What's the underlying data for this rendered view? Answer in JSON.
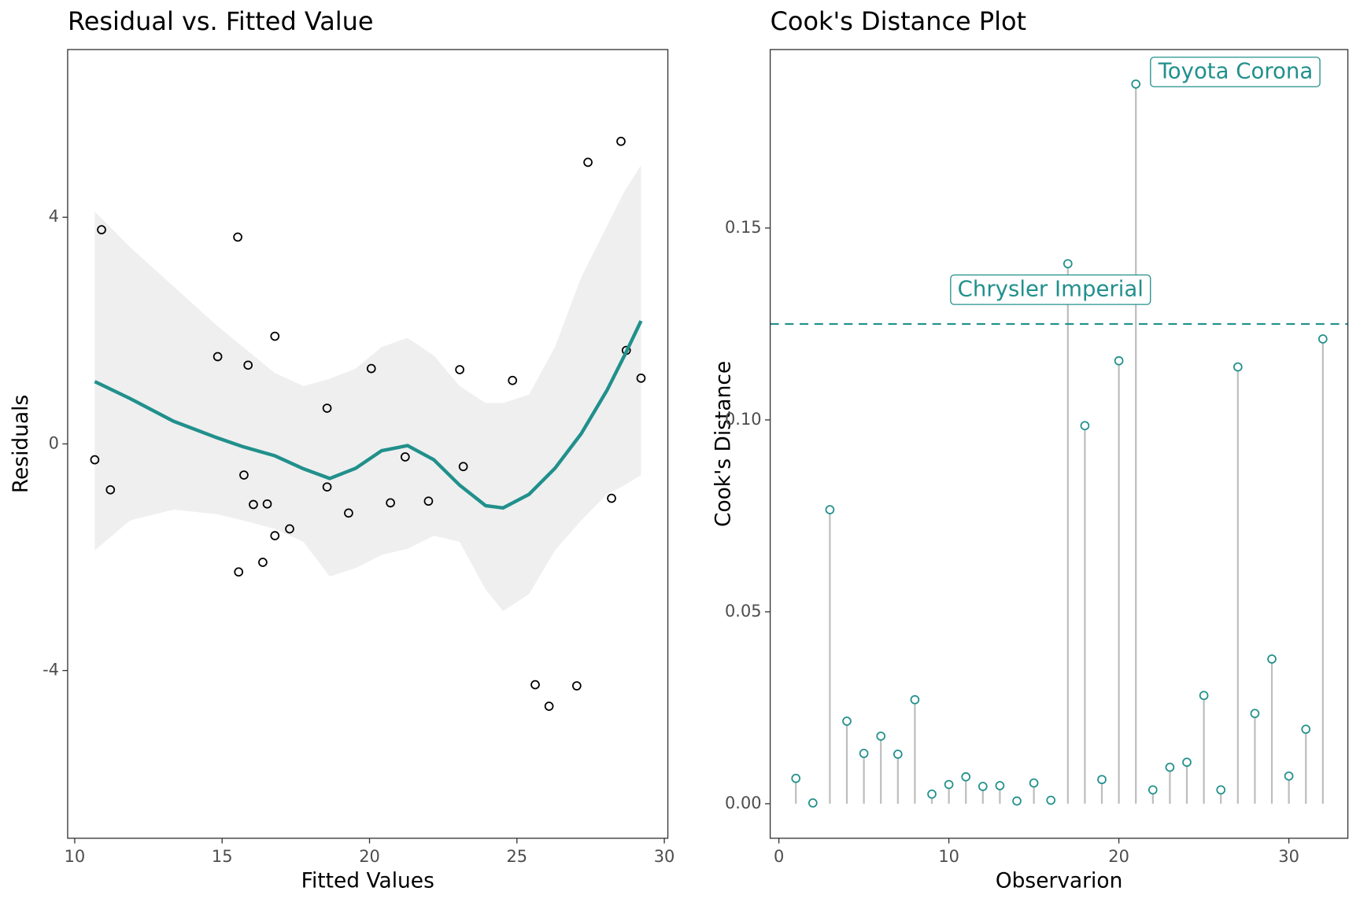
{
  "chart_data": [
    {
      "type": "scatter",
      "title": "Residual vs. Fitted Value",
      "xlabel": "Fitted Values",
      "ylabel": "Residuals",
      "xlim": [
        9.76,
        30.12
      ],
      "ylim": [
        -6.96,
        6.96
      ],
      "xticks": [
        10,
        15,
        20,
        25,
        30
      ],
      "yticks": [
        -4,
        0,
        4
      ],
      "point_color": "#000000",
      "x": [
        10.68,
        10.91,
        11.21,
        14.85,
        15.53,
        15.56,
        15.74,
        15.88,
        16.06,
        16.38,
        16.53,
        16.79,
        16.79,
        17.29,
        18.56,
        18.56,
        19.29,
        20.06,
        20.71,
        21.21,
        22.0,
        23.06,
        23.18,
        24.85,
        25.62,
        26.09,
        27.03,
        27.41,
        28.21,
        28.53,
        28.71,
        29.21
      ],
      "values": [
        -0.28,
        3.78,
        -0.81,
        1.54,
        3.65,
        -2.26,
        -0.55,
        1.39,
        -1.07,
        -2.09,
        -1.06,
        1.9,
        -1.62,
        -1.5,
        0.63,
        -0.76,
        -1.22,
        1.33,
        -1.04,
        -0.23,
        -1.01,
        1.31,
        -0.4,
        1.12,
        -4.25,
        -4.63,
        -4.27,
        4.97,
        -0.96,
        5.34,
        1.65,
        1.16
      ],
      "smooth": {
        "color": "#21908c",
        "band_color": "#efefef",
        "x": [
          10.68,
          11.88,
          13.35,
          14.82,
          15.71,
          16.79,
          17.76,
          18.65,
          19.53,
          20.41,
          21.29,
          22.18,
          23.06,
          23.94,
          24.53,
          25.41,
          26.29,
          27.18,
          28.06,
          28.65,
          29.21
        ],
        "values": [
          1.1,
          0.8,
          0.4,
          0.11,
          -0.05,
          -0.21,
          -0.44,
          -0.61,
          -0.43,
          -0.12,
          -0.03,
          -0.28,
          -0.73,
          -1.09,
          -1.13,
          -0.89,
          -0.43,
          0.18,
          0.95,
          1.56,
          2.17
        ],
        "upper": [
          4.1,
          3.47,
          2.78,
          2.09,
          1.71,
          1.25,
          1.02,
          1.15,
          1.33,
          1.71,
          1.87,
          1.56,
          1.02,
          0.72,
          0.72,
          0.87,
          1.71,
          2.94,
          3.85,
          4.46,
          4.92
        ],
        "lower": [
          -1.88,
          -1.35,
          -1.16,
          -1.24,
          -1.35,
          -1.5,
          -1.73,
          -2.34,
          -2.19,
          -1.96,
          -1.85,
          -1.62,
          -1.73,
          -2.57,
          -2.95,
          -2.65,
          -1.88,
          -1.35,
          -0.89,
          -0.73,
          -0.55
        ]
      }
    },
    {
      "type": "lollipop",
      "title": "Cook's Distance Plot",
      "xlabel": "Observarion",
      "ylabel": "Cook's Distance",
      "xlim": [
        -0.51,
        33.47
      ],
      "ylim": [
        -0.009,
        0.1965
      ],
      "xticks": [
        0,
        10,
        20,
        30
      ],
      "yticks": [
        {
          "value": 0,
          "label": "0.00"
        },
        {
          "value": 0.05,
          "label": "0.05"
        },
        {
          "value": 0.1,
          "label": "0.10"
        },
        {
          "value": 0.15,
          "label": "0.15"
        }
      ],
      "color": "#21908c",
      "stem_color": "#bdbdbd",
      "threshold": 0.125,
      "x": [
        1,
        2,
        3,
        4,
        5,
        6,
        7,
        8,
        9,
        10,
        11,
        12,
        13,
        14,
        15,
        16,
        17,
        18,
        19,
        20,
        21,
        22,
        23,
        24,
        25,
        26,
        27,
        28,
        29,
        30,
        31,
        32
      ],
      "values": [
        0.0066,
        0.0002,
        0.0766,
        0.0215,
        0.0131,
        0.0176,
        0.0129,
        0.0271,
        0.0025,
        0.005,
        0.007,
        0.0045,
        0.0047,
        0.0007,
        0.0054,
        0.0009,
        0.1407,
        0.0985,
        0.0063,
        0.1154,
        0.1875,
        0.0036,
        0.0095,
        0.0108,
        0.0282,
        0.0036,
        0.1138,
        0.0235,
        0.0377,
        0.0072,
        0.0194,
        0.1211
      ],
      "annotations": [
        {
          "text": "Chrysler Imperial",
          "x": 17
        },
        {
          "text": "Toyota Corona",
          "x": 21
        }
      ]
    }
  ]
}
